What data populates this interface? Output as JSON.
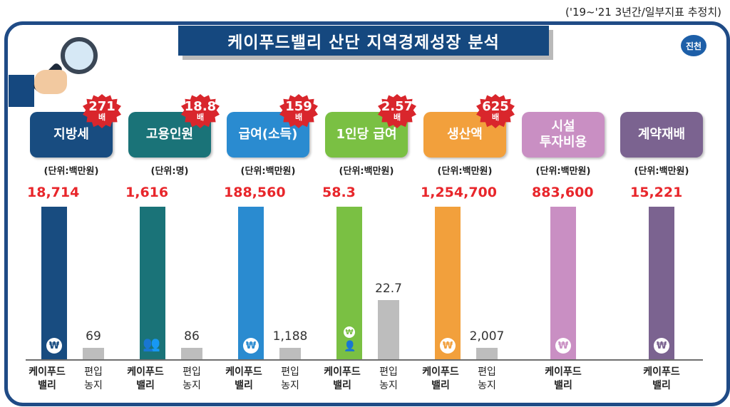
{
  "note": "('19~'21  3년간/일부지표 추정치)",
  "title": "케이푸드밸리 산단 지역경제성장 분석",
  "logo_text": "진천",
  "colors": {
    "frame": "#1f4b86",
    "highlight_value": "#e8262b",
    "burst": "#d9262c",
    "comparison_bar": "#bdbdbd"
  },
  "chart_data": {
    "type": "bar",
    "series_labels": {
      "kfood": "케이푸드\n밸리",
      "other": "편입\n농지"
    },
    "groups": [
      {
        "label": "지방세",
        "unit": "(단위:백만원)",
        "kfood": 18714,
        "kfood_label": "18,714",
        "other": 69,
        "other_label": "69",
        "multiplier": "271",
        "multiplier_unit": "배",
        "color": "#184c80",
        "icon": "won-icon"
      },
      {
        "label": "고용인원",
        "unit": "(단위:명)",
        "kfood": 1616,
        "kfood_label": "1,616",
        "other": 86,
        "other_label": "86",
        "multiplier": "18.8",
        "multiplier_unit": "배",
        "color": "#1a7378",
        "icon": "people-icon"
      },
      {
        "label": "급여(소득)",
        "unit": "(단위:백만원)",
        "kfood": 188560,
        "kfood_label": "188,560",
        "other": 1188,
        "other_label": "1,188",
        "multiplier": "159",
        "multiplier_unit": "배",
        "color": "#2a8bd0",
        "icon": "won-icon"
      },
      {
        "label": "1인당 급여",
        "unit": "(단위:백만원)",
        "kfood": 58.3,
        "kfood_label": "58.3",
        "other": 22.7,
        "other_label": "22.7",
        "multiplier": "2.57",
        "multiplier_unit": "배",
        "color": "#7ac043",
        "icon": "person-won-icon"
      },
      {
        "label": "생산액",
        "unit": "(단위:백만원)",
        "kfood": 1254700,
        "kfood_label": "1,254,700",
        "other": 2007,
        "other_label": "2,007",
        "multiplier": "625",
        "multiplier_unit": "배",
        "color": "#f2a03c",
        "icon": "won-icon"
      },
      {
        "label": "시설\n투자비용",
        "unit": "(단위:백만원)",
        "kfood": 883600,
        "kfood_label": "883,600",
        "other": null,
        "other_label": "",
        "multiplier": "",
        "multiplier_unit": "",
        "color": "#c98fc3",
        "icon": "won-icon"
      },
      {
        "label": "계약재배",
        "unit": "(단위:백만원)",
        "kfood": 15221,
        "kfood_label": "15,221",
        "other": null,
        "other_label": "",
        "multiplier": "",
        "multiplier_unit": "",
        "color": "#7b6390",
        "icon": "won-icon"
      }
    ]
  }
}
